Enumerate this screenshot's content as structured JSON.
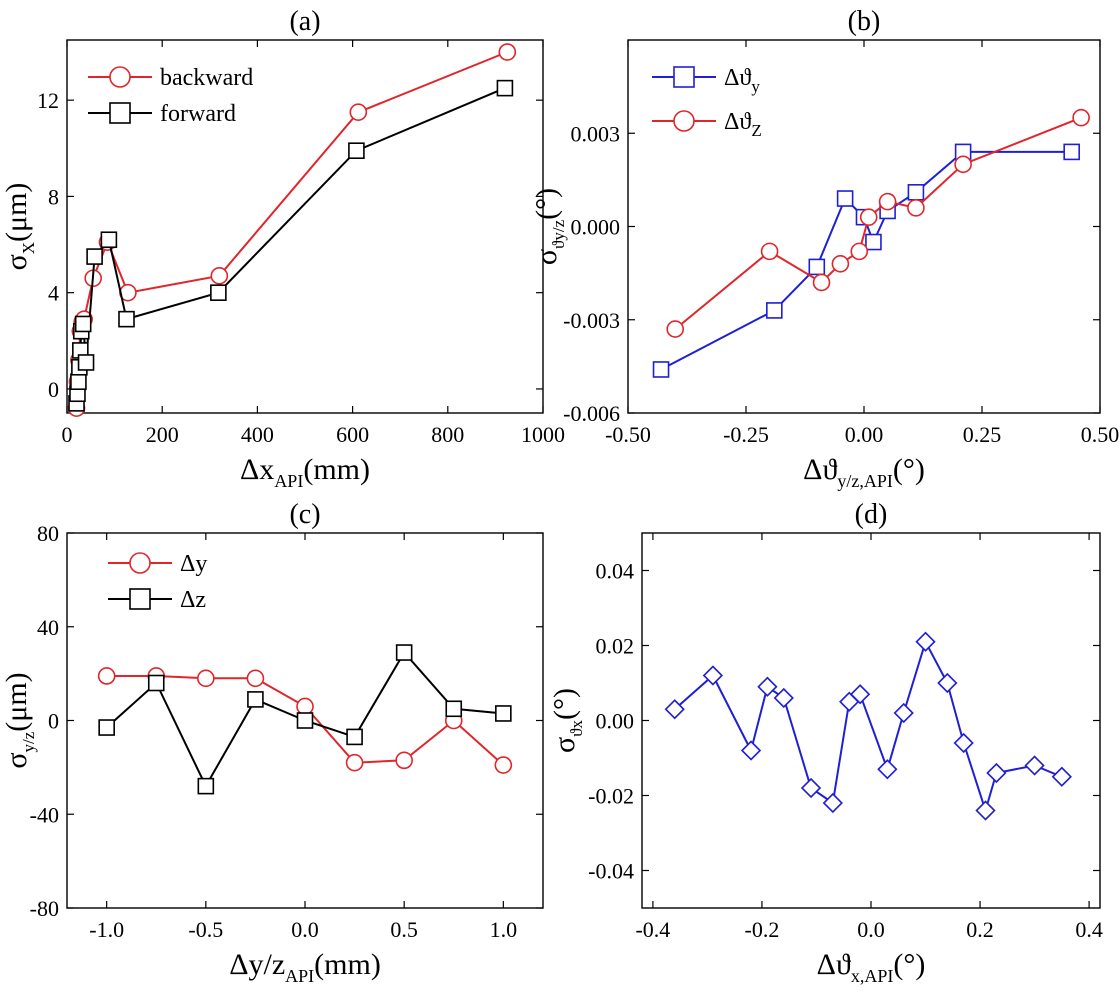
{
  "chart_data": [
    {
      "id": "a",
      "type": "line",
      "title": "(a)",
      "xlabel": "Δx",
      "xlabel_sub": "API",
      "xlabel_unit": "(mm)",
      "ylabel": "σ",
      "ylabel_sub": "X",
      "ylabel_unit": "(μm)",
      "xlim": [
        0,
        1000
      ],
      "ylim": [
        -1,
        14.5
      ],
      "xticks": [
        0,
        200,
        400,
        600,
        800,
        1000
      ],
      "yticks": [
        0,
        4,
        8,
        12
      ],
      "xtick_labels": [
        "0",
        "200",
        "400",
        "600",
        "800",
        "1000"
      ],
      "ytick_labels": [
        "0",
        "4",
        "8",
        "12"
      ],
      "legend_position": "top-left",
      "series": [
        {
          "name": "backward",
          "marker": "circle",
          "color": "#e0262b",
          "x": [
            20,
            22,
            25,
            28,
            32,
            36,
            55,
            85,
            128,
            320,
            612,
            925
          ],
          "y": [
            -0.8,
            0.3,
            1.2,
            2.4,
            2.8,
            2.9,
            4.6,
            6.1,
            4.0,
            4.7,
            11.5,
            14.0
          ]
        },
        {
          "name": "forward",
          "marker": "square",
          "color": "#000000",
          "x": [
            20,
            22,
            24,
            26,
            28,
            30,
            34,
            40,
            58,
            88,
            125,
            318,
            608,
            920
          ],
          "y": [
            -0.6,
            -0.2,
            0.3,
            0.9,
            1.6,
            2.4,
            2.7,
            1.1,
            5.5,
            6.2,
            2.9,
            4.0,
            9.9,
            12.5
          ]
        }
      ]
    },
    {
      "id": "b",
      "type": "line",
      "title": "(b)",
      "xlabel": "Δϑ",
      "xlabel_sub": "y/z,API",
      "xlabel_unit": "(°)",
      "ylabel": "σ",
      "ylabel_sub": "ϑy/z",
      "ylabel_unit": "(°)",
      "xlim": [
        -0.5,
        0.5
      ],
      "ylim": [
        -0.006,
        0.006
      ],
      "xticks": [
        -0.5,
        -0.25,
        0,
        0.25,
        0.5
      ],
      "yticks": [
        -0.006,
        -0.003,
        0,
        0.003
      ],
      "xtick_labels": [
        "-0.50",
        "-0.25",
        "0.00",
        "0.25",
        "0.50"
      ],
      "ytick_labels": [
        "-0.006",
        "-0.003",
        "0.000",
        "0.003"
      ],
      "legend_position": "top-left",
      "series": [
        {
          "name": "Δϑ",
          "name_sub": "y",
          "marker": "square",
          "color": "#1f1fd6",
          "x": [
            -0.43,
            -0.19,
            -0.1,
            -0.04,
            0.0,
            0.02,
            0.05,
            0.11,
            0.21,
            0.44
          ],
          "y": [
            -0.0046,
            -0.0027,
            -0.0013,
            0.0009,
            0.0003,
            -0.0005,
            0.0005,
            0.0011,
            0.0024,
            0.0024
          ]
        },
        {
          "name": "Δϑ",
          "name_sub": "Z",
          "marker": "circle",
          "color": "#e0262b",
          "x": [
            -0.4,
            -0.2,
            -0.09,
            -0.05,
            -0.01,
            0.01,
            0.05,
            0.11,
            0.21,
            0.46
          ],
          "y": [
            -0.0033,
            -0.0008,
            -0.0018,
            -0.0012,
            -0.0008,
            0.0003,
            0.0008,
            0.0006,
            0.002,
            0.0035
          ]
        }
      ]
    },
    {
      "id": "c",
      "type": "line",
      "title": "(c)",
      "xlabel": "Δy/z",
      "xlabel_sub": "API",
      "xlabel_unit": "(mm)",
      "ylabel": "σ",
      "ylabel_sub": "y/z",
      "ylabel_unit": "(μm)",
      "xlim": [
        -1.2,
        1.2
      ],
      "ylim": [
        -80,
        80
      ],
      "xticks": [
        -1.0,
        -0.5,
        0.0,
        0.5,
        1.0
      ],
      "yticks": [
        -80,
        -40,
        0,
        40,
        80
      ],
      "xtick_labels": [
        "-1.0",
        "-0.5",
        "0.0",
        "0.5",
        "1.0"
      ],
      "ytick_labels": [
        "-80",
        "-40",
        "0",
        "40",
        "80"
      ],
      "legend_position": "top-left",
      "series": [
        {
          "name": "Δy",
          "marker": "circle",
          "color": "#e0262b",
          "x": [
            -1.0,
            -0.75,
            -0.5,
            -0.25,
            0.0,
            0.25,
            0.5,
            0.75,
            1.0
          ],
          "y": [
            19,
            19,
            18,
            18,
            6,
            -18,
            -17,
            0,
            -19
          ]
        },
        {
          "name": "Δz",
          "marker": "square",
          "color": "#000000",
          "x": [
            -1.0,
            -0.75,
            -0.5,
            -0.25,
            0.0,
            0.25,
            0.5,
            0.75,
            1.0
          ],
          "y": [
            -3,
            16,
            -28,
            9,
            0,
            -7,
            29,
            5,
            3
          ]
        }
      ]
    },
    {
      "id": "d",
      "type": "line",
      "title": "(d)",
      "xlabel": "Δϑ",
      "xlabel_sub": "x,API",
      "xlabel_unit": "(°)",
      "ylabel": "σ",
      "ylabel_sub": "ϑx",
      "ylabel_unit": "(°)",
      "xlim": [
        -0.42,
        0.42
      ],
      "ylim": [
        -0.05,
        0.05
      ],
      "xticks": [
        -0.4,
        -0.2,
        0.0,
        0.2,
        0.4
      ],
      "yticks": [
        -0.04,
        -0.02,
        0.0,
        0.02,
        0.04
      ],
      "xtick_labels": [
        "-0.4",
        "-0.2",
        "0.0",
        "0.2",
        "0.4"
      ],
      "ytick_labels": [
        "-0.04",
        "-0.02",
        "0.00",
        "0.02",
        "0.04"
      ],
      "legend_position": "none",
      "series": [
        {
          "name": "",
          "marker": "diamond",
          "color": "#1f1fd6",
          "x": [
            -0.36,
            -0.29,
            -0.22,
            -0.19,
            -0.16,
            -0.11,
            -0.07,
            -0.04,
            -0.02,
            0.03,
            0.06,
            0.1,
            0.14,
            0.17,
            0.21,
            0.23,
            0.3,
            0.35
          ],
          "y": [
            0.003,
            0.012,
            -0.008,
            0.009,
            0.006,
            -0.018,
            -0.022,
            0.005,
            0.007,
            -0.013,
            0.002,
            0.021,
            0.01,
            -0.006,
            -0.024,
            -0.014,
            -0.012,
            -0.015
          ]
        }
      ]
    }
  ]
}
